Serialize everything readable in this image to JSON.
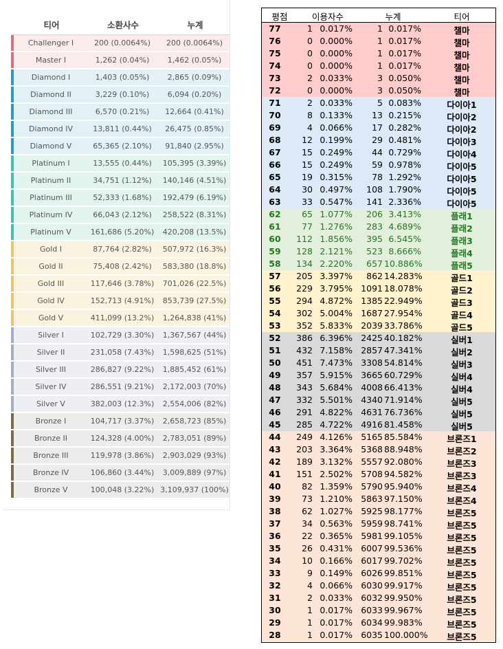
{
  "left_table": {
    "headers": [
      "티어",
      "소환사수",
      "누계"
    ],
    "rows": [
      {
        "tier": "Challenger I",
        "count": "200 (0.0064%)",
        "cum": "200 (0.0064%)",
        "group": "challenger"
      },
      {
        "tier": "Master I",
        "count": "1,262 (0.04%)",
        "cum": "1,462 (0.05%)",
        "group": "master"
      },
      {
        "tier": "Diamond I",
        "count": "1,403 (0.05%)",
        "cum": "2,865 (0.09%)",
        "group": "diamond"
      },
      {
        "tier": "Diamond II",
        "count": "3,229 (0.10%)",
        "cum": "6,094 (0.20%)",
        "group": "diamond"
      },
      {
        "tier": "Diamond III",
        "count": "6,570 (0.21%)",
        "cum": "12,664 (0.41%)",
        "group": "diamond"
      },
      {
        "tier": "Diamond IV",
        "count": "13,811 (0.44%)",
        "cum": "26,475 (0.85%)",
        "group": "diamond"
      },
      {
        "tier": "Diamond V",
        "count": "65,365 (2.10%)",
        "cum": "91,840 (2.95%)",
        "group": "diamond"
      },
      {
        "tier": "Platinum I",
        "count": "13,555 (0.44%)",
        "cum": "105,395 (3.39%)",
        "group": "platinum"
      },
      {
        "tier": "Platinum II",
        "count": "34,751 (1.12%)",
        "cum": "140,146 (4.51%)",
        "group": "platinum"
      },
      {
        "tier": "Platinum III",
        "count": "52,333 (1.68%)",
        "cum": "192,479 (6.19%)",
        "group": "platinum"
      },
      {
        "tier": "Platinum IV",
        "count": "66,043 (2.12%)",
        "cum": "258,522 (8.31%)",
        "group": "platinum"
      },
      {
        "tier": "Platinum V",
        "count": "161,686 (5.20%)",
        "cum": "420,208 (13.5%)",
        "group": "platinum"
      },
      {
        "tier": "Gold I",
        "count": "87,764 (2.82%)",
        "cum": "507,972 (16.3%)",
        "group": "gold"
      },
      {
        "tier": "Gold II",
        "count": "75,408 (2.42%)",
        "cum": "583,380 (18.8%)",
        "group": "gold"
      },
      {
        "tier": "Gold III",
        "count": "117,646 (3.78%)",
        "cum": "701,026 (22.5%)",
        "group": "gold"
      },
      {
        "tier": "Gold IV",
        "count": "152,713 (4.91%)",
        "cum": "853,739 (27.5%)",
        "group": "gold"
      },
      {
        "tier": "Gold V",
        "count": "411,099 (13.2%)",
        "cum": "1,264,838 (41%)",
        "group": "gold"
      },
      {
        "tier": "Silver I",
        "count": "102,729 (3.30%)",
        "cum": "1,367,567 (44%)",
        "group": "silver"
      },
      {
        "tier": "Silver II",
        "count": "231,058 (7.43%)",
        "cum": "1,598,625 (51%)",
        "group": "silver"
      },
      {
        "tier": "Silver III",
        "count": "286,827 (9.22%)",
        "cum": "1,885,452 (61%)",
        "group": "silver"
      },
      {
        "tier": "Silver IV",
        "count": "286,551 (9.21%)",
        "cum": "2,172,003 (70%)",
        "group": "silver"
      },
      {
        "tier": "Silver V",
        "count": "382,003 (12.3%)",
        "cum": "2,554,006 (82%)",
        "group": "silver"
      },
      {
        "tier": "Bronze I",
        "count": "104,717 (3.37%)",
        "cum": "2,658,723 (85%)",
        "group": "bronze"
      },
      {
        "tier": "Bronze II",
        "count": "124,328 (4.00%)",
        "cum": "2,783,051 (89%)",
        "group": "bronze"
      },
      {
        "tier": "Bronze III",
        "count": "119,978 (3.86%)",
        "cum": "2,903,029 (93%)",
        "group": "bronze"
      },
      {
        "tier": "Bronze IV",
        "count": "106,860 (3.44%)",
        "cum": "3,009,889 (97%)",
        "group": "bronze"
      },
      {
        "tier": "Bronze V",
        "count": "100,048 (3.22%)",
        "cum": "3,109,937 (100%)",
        "group": "bronze"
      }
    ],
    "group_colors": {
      "challenger": {
        "bg": "#fbebeb",
        "bar": "#d9707c"
      },
      "master": {
        "bg": "#fbebeb",
        "bar": "#d9707c"
      },
      "diamond": {
        "bg": "#e2f1f6",
        "bar": "#2a9bbf"
      },
      "platinum": {
        "bg": "#e1f4ef",
        "bar": "#3ec5a8"
      },
      "gold": {
        "bg": "#faf3df",
        "bar": "#e9c46a"
      },
      "silver": {
        "bg": "#eeeff3",
        "bar": "#a9adbf"
      },
      "bronze": {
        "bg": "#ececea",
        "bar": "#7b6c47"
      }
    }
  },
  "right_table": {
    "headers": [
      "평점",
      "이용자수",
      "누계",
      "티어"
    ],
    "rows": [
      [
        "77",
        "1",
        "0.017%",
        "1",
        "0.017%",
        "챌마",
        "champ"
      ],
      [
        "76",
        "0",
        "0.000%",
        "1",
        "0.017%",
        "챌마",
        "champ"
      ],
      [
        "75",
        "0",
        "0.000%",
        "1",
        "0.017%",
        "챌마",
        "champ"
      ],
      [
        "74",
        "0",
        "0.000%",
        "1",
        "0.017%",
        "챌마",
        "champ"
      ],
      [
        "73",
        "2",
        "0.033%",
        "3",
        "0.050%",
        "챌마",
        "champ"
      ],
      [
        "72",
        "0",
        "0.000%",
        "3",
        "0.050%",
        "챌마",
        "champ"
      ],
      [
        "71",
        "2",
        "0.033%",
        "5",
        "0.083%",
        "다이아1",
        "dia"
      ],
      [
        "70",
        "8",
        "0.133%",
        "13",
        "0.215%",
        "다이아2",
        "dia"
      ],
      [
        "69",
        "4",
        "0.066%",
        "17",
        "0.282%",
        "다이아2",
        "dia"
      ],
      [
        "68",
        "12",
        "0.199%",
        "29",
        "0.481%",
        "다이아3",
        "dia"
      ],
      [
        "67",
        "15",
        "0.249%",
        "44",
        "0.729%",
        "다이아4",
        "dia"
      ],
      [
        "66",
        "15",
        "0.249%",
        "59",
        "0.978%",
        "다이아5",
        "dia"
      ],
      [
        "65",
        "19",
        "0.315%",
        "78",
        "1.292%",
        "다이아5",
        "dia"
      ],
      [
        "64",
        "30",
        "0.497%",
        "108",
        "1.790%",
        "다이아5",
        "dia"
      ],
      [
        "63",
        "33",
        "0.547%",
        "141",
        "2.336%",
        "다이아5",
        "dia"
      ],
      [
        "62",
        "65",
        "1.077%",
        "206",
        "3.413%",
        "플래1",
        "plat"
      ],
      [
        "61",
        "77",
        "1.276%",
        "283",
        "4.689%",
        "플래2",
        "plat"
      ],
      [
        "60",
        "112",
        "1.856%",
        "395",
        "6.545%",
        "플래3",
        "plat"
      ],
      [
        "59",
        "128",
        "2.121%",
        "523",
        "8.666%",
        "플래4",
        "plat"
      ],
      [
        "58",
        "134",
        "2.220%",
        "657",
        "10.886%",
        "플래5",
        "plat"
      ],
      [
        "57",
        "205",
        "3.397%",
        "862",
        "14.283%",
        "골드1",
        "gold"
      ],
      [
        "56",
        "229",
        "3.795%",
        "1091",
        "18.078%",
        "골드2",
        "gold"
      ],
      [
        "55",
        "294",
        "4.872%",
        "1385",
        "22.949%",
        "골드3",
        "gold"
      ],
      [
        "54",
        "302",
        "5.004%",
        "1687",
        "27.954%",
        "골드4",
        "gold"
      ],
      [
        "53",
        "352",
        "5.833%",
        "2039",
        "33.786%",
        "골드5",
        "gold"
      ],
      [
        "52",
        "386",
        "6.396%",
        "2425",
        "40.182%",
        "실버1",
        "silver"
      ],
      [
        "51",
        "432",
        "7.158%",
        "2857",
        "47.341%",
        "실버2",
        "silver"
      ],
      [
        "50",
        "451",
        "7.473%",
        "3308",
        "54.814%",
        "실버3",
        "silver"
      ],
      [
        "49",
        "357",
        "5.915%",
        "3665",
        "60.729%",
        "실버4",
        "silver"
      ],
      [
        "48",
        "343",
        "5.684%",
        "4008",
        "66.413%",
        "실버4",
        "silver"
      ],
      [
        "47",
        "332",
        "5.501%",
        "4340",
        "71.914%",
        "실버5",
        "silver"
      ],
      [
        "46",
        "291",
        "4.822%",
        "4631",
        "76.736%",
        "실버5",
        "silver"
      ],
      [
        "45",
        "285",
        "4.722%",
        "4916",
        "81.458%",
        "실버5",
        "silver"
      ],
      [
        "44",
        "249",
        "4.126%",
        "5165",
        "85.584%",
        "브론즈1",
        "bronze"
      ],
      [
        "43",
        "203",
        "3.364%",
        "5368",
        "88.948%",
        "브론즈2",
        "bronze"
      ],
      [
        "42",
        "189",
        "3.132%",
        "5557",
        "92.080%",
        "브론즈3",
        "bronze"
      ],
      [
        "41",
        "151",
        "2.502%",
        "5708",
        "94.582%",
        "브론즈3",
        "bronze"
      ],
      [
        "40",
        "82",
        "1.359%",
        "5790",
        "95.940%",
        "브론즈4",
        "bronze"
      ],
      [
        "39",
        "73",
        "1.210%",
        "5863",
        "97.150%",
        "브론즈4",
        "bronze"
      ],
      [
        "38",
        "62",
        "1.027%",
        "5925",
        "98.177%",
        "브론즈5",
        "bronze"
      ],
      [
        "37",
        "34",
        "0.563%",
        "5959",
        "98.741%",
        "브론즈5",
        "bronze"
      ],
      [
        "36",
        "22",
        "0.365%",
        "5981",
        "99.105%",
        "브론즈5",
        "bronze"
      ],
      [
        "35",
        "26",
        "0.431%",
        "6007",
        "99.536%",
        "브론즈5",
        "bronze"
      ],
      [
        "34",
        "10",
        "0.166%",
        "6017",
        "99.702%",
        "브론즈5",
        "bronze"
      ],
      [
        "33",
        "9",
        "0.149%",
        "6026",
        "99.851%",
        "브론즈5",
        "bronze"
      ],
      [
        "32",
        "4",
        "0.066%",
        "6030",
        "99.917%",
        "브론즈5",
        "bronze"
      ],
      [
        "31",
        "2",
        "0.033%",
        "6032",
        "99.950%",
        "브론즈5",
        "bronze"
      ],
      [
        "30",
        "1",
        "0.017%",
        "6033",
        "99.967%",
        "브론즈5",
        "bronze"
      ],
      [
        "29",
        "1",
        "0.017%",
        "6034",
        "99.983%",
        "브론즈5",
        "bronze"
      ],
      [
        "28",
        "1",
        "0.017%",
        "6035",
        "100.000%",
        "브론즈5",
        "bronze"
      ]
    ],
    "group_colors": {
      "champ": {
        "bg": "#ffcccc",
        "fg": "#000000"
      },
      "dia": {
        "bg": "#dde9f6",
        "fg": "#000000"
      },
      "plat": {
        "bg": "#e2efda",
        "fg": "#1f7a1f"
      },
      "gold": {
        "bg": "#fff2cc",
        "fg": "#000000"
      },
      "silver": {
        "bg": "#d9d9d9",
        "fg": "#000000"
      },
      "bronze": {
        "bg": "#fce4d6",
        "fg": "#000000"
      }
    }
  }
}
